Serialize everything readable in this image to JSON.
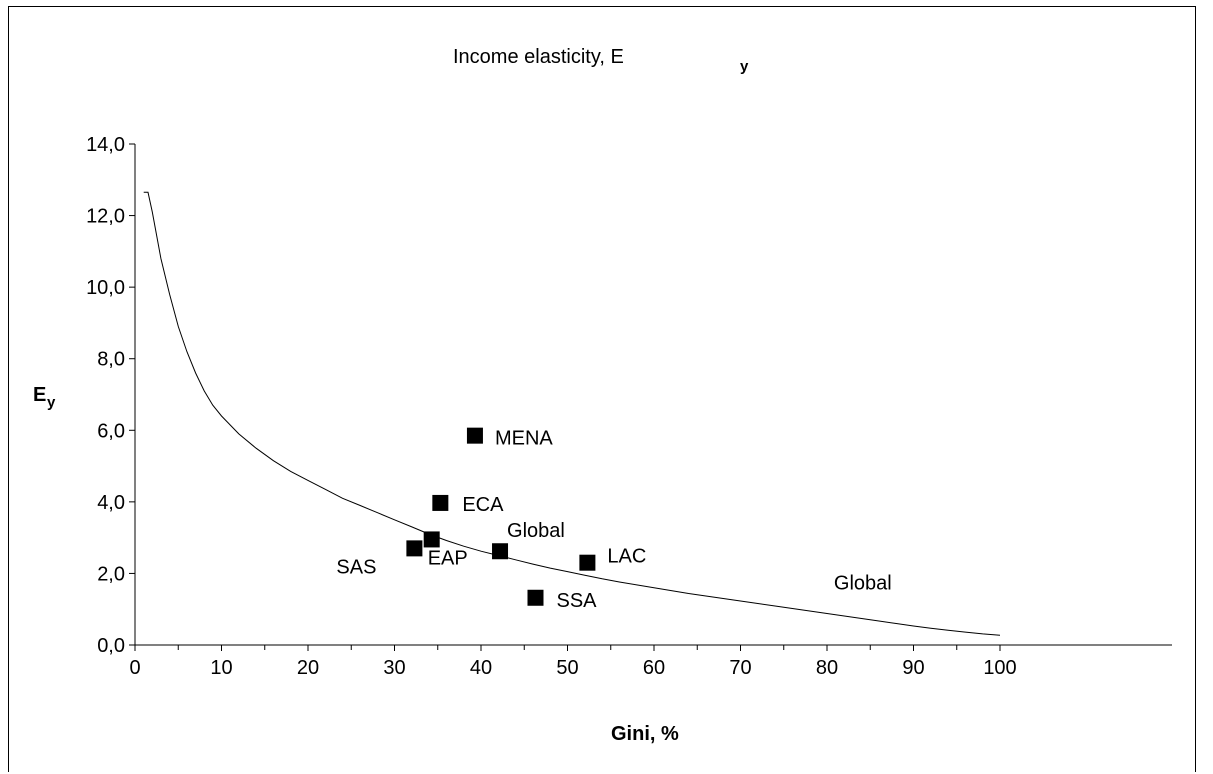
{
  "chart_data": {
    "type": "scatter",
    "title": "Income elasticity, E",
    "title_subscript": "y",
    "ylabel": "E",
    "ylabel_subscript": "y",
    "xlabel": "Gini, %",
    "xlim": [
      0,
      100
    ],
    "ylim": [
      0,
      14
    ],
    "x_ticks": [
      "0",
      "10",
      "20",
      "30",
      "40",
      "50",
      "60",
      "70",
      "80",
      "90",
      "100"
    ],
    "y_ticks": [
      "0,0",
      "2,0",
      "4,0",
      "6,0",
      "8,0",
      "10,0",
      "12,0",
      "14,0"
    ],
    "grid": false,
    "curve": {
      "name": "Global",
      "x": [
        1,
        1.5,
        2,
        3,
        4,
        5,
        6,
        7,
        8,
        9,
        10,
        12,
        14,
        16,
        18,
        20,
        22,
        24,
        26,
        28,
        30,
        32,
        34,
        36,
        38,
        40,
        42,
        44,
        46,
        48,
        50,
        52,
        54,
        56,
        58,
        60,
        62,
        64,
        66,
        68,
        70,
        72,
        74,
        76,
        78,
        80,
        82,
        84,
        86,
        88,
        90,
        92,
        94,
        96,
        98,
        100
      ],
      "y": [
        12.65,
        12.65,
        12.1,
        10.8,
        9.8,
        8.9,
        8.2,
        7.6,
        7.1,
        6.7,
        6.4,
        5.9,
        5.5,
        5.15,
        4.85,
        4.6,
        4.35,
        4.1,
        3.9,
        3.7,
        3.5,
        3.3,
        3.1,
        2.92,
        2.76,
        2.62,
        2.5,
        2.38,
        2.26,
        2.15,
        2.05,
        1.95,
        1.85,
        1.76,
        1.68,
        1.6,
        1.52,
        1.44,
        1.37,
        1.3,
        1.23,
        1.16,
        1.09,
        1.02,
        0.95,
        0.88,
        0.81,
        0.74,
        0.67,
        0.6,
        0.53,
        0.47,
        0.41,
        0.36,
        0.31,
        0.27
      ]
    },
    "points": [
      {
        "label": "SAS",
        "x": 32.3,
        "y": 2.7
      },
      {
        "label": "EAP",
        "x": 34.3,
        "y": 2.95
      },
      {
        "label": "ECA",
        "x": 35.3,
        "y": 3.97
      },
      {
        "label": "MENA",
        "x": 39.3,
        "y": 5.85
      },
      {
        "label": "Global",
        "x": 42.2,
        "y": 2.62
      },
      {
        "label": "SSA",
        "x": 46.3,
        "y": 1.32
      },
      {
        "label": "LAC",
        "x": 52.3,
        "y": 2.3
      }
    ],
    "curve_label": "Global"
  }
}
